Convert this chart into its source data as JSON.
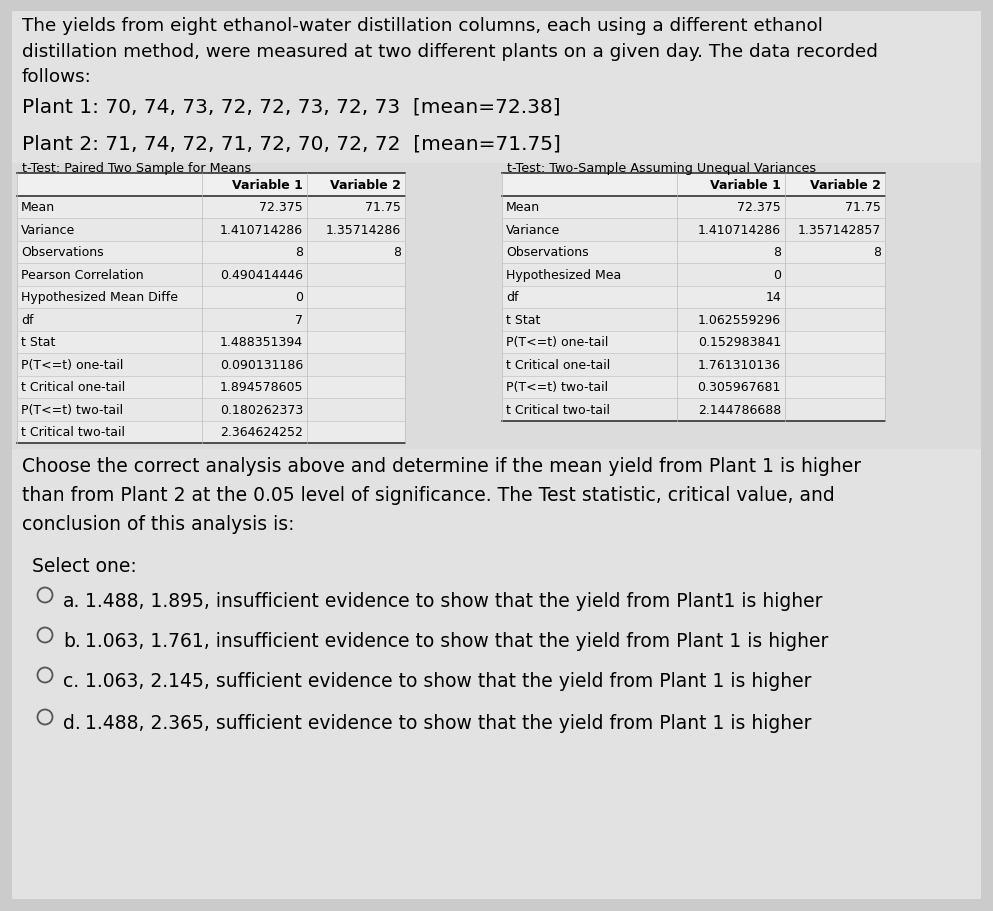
{
  "bg_color": "#cbcbcb",
  "content_bg": "#e2e2e2",
  "title_text": "The yields from eight ethanol-water distillation columns, each using a different ethanol\ndistillation method, were measured at two different plants on a given day. The data recorded\nfollows:",
  "plant1_text": "Plant 1: 70, 74, 73, 72, 72, 73, 72, 73  [mean=72.38]",
  "plant2_text": "Plant 2: 71, 74, 72, 71, 72, 70, 72, 72  [mean=71.75]",
  "table1_title": "t-Test: Paired Two Sample for Means",
  "table2_title": "t-Test: Two-Sample Assuming Unequal Variances",
  "table1_rows": [
    [
      "",
      "Variable 1",
      "Variable 2"
    ],
    [
      "Mean",
      "72.375",
      "71.75"
    ],
    [
      "Variance",
      "1.410714286",
      "1.35714286"
    ],
    [
      "Observations",
      "8",
      "8"
    ],
    [
      "Pearson Correlation",
      "0.490414446",
      ""
    ],
    [
      "Hypothesized Mean Diffe",
      "0",
      ""
    ],
    [
      "df",
      "7",
      ""
    ],
    [
      "t Stat",
      "1.488351394",
      ""
    ],
    [
      "P(T<=t) one-tail",
      "0.090131186",
      ""
    ],
    [
      "t Critical one-tail",
      "1.894578605",
      ""
    ],
    [
      "P(T<=t) two-tail",
      "0.180262373",
      ""
    ],
    [
      "t Critical two-tail",
      "2.364624252",
      ""
    ]
  ],
  "table2_rows": [
    [
      "",
      "Variable 1",
      "Variable 2"
    ],
    [
      "Mean",
      "72.375",
      "71.75"
    ],
    [
      "Variance",
      "1.410714286",
      "1.357142857"
    ],
    [
      "Observations",
      "8",
      "8"
    ],
    [
      "Hypothesized Mea",
      "0",
      ""
    ],
    [
      "df",
      "14",
      ""
    ],
    [
      "t Stat",
      "1.062559296",
      ""
    ],
    [
      "P(T<=t) one-tail",
      "0.152983841",
      ""
    ],
    [
      "t Critical one-tail",
      "1.761310136",
      ""
    ],
    [
      "P(T<=t) two-tail",
      "0.305967681",
      ""
    ],
    [
      "t Critical two-tail",
      "2.144786688",
      ""
    ]
  ],
  "question_text": "Choose the correct analysis above and determine if the mean yield from Plant 1 is higher\nthan from Plant 2 at the 0.05 level of significance. The Test statistic, critical value, and\nconclusion of this analysis is:",
  "select_text": "Select one:",
  "option_letters": [
    "a.",
    "b.",
    "c.",
    "d."
  ],
  "option_texts": [
    "1.488, 1.895, insufficient evidence to show that the yield from Plant1 is higher",
    "1.063, 1.761, insufficient evidence to show that the yield from Plant 1 is higher",
    "1.063, 2.145, sufficient evidence to show that the yield from Plant 1 is higher",
    "1.488, 2.365, sufficient evidence to show that the yield from Plant 1 is higher"
  ],
  "table_cell_bg": "#e8e8e8",
  "table_header_bg": "#e8e8e8",
  "table_line_color": "#999999"
}
